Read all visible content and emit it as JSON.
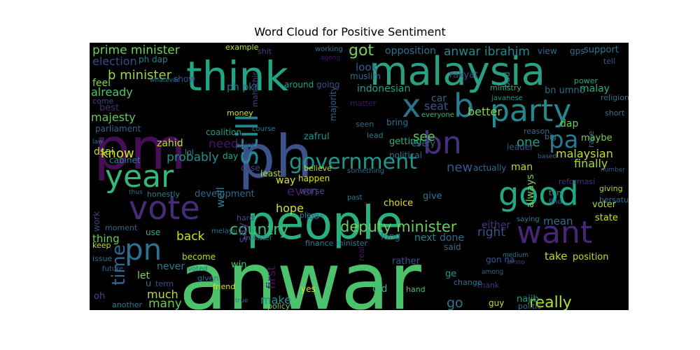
{
  "chart_data": {
    "type": "wordcloud",
    "title": "Word Cloud for Positive Sentiment",
    "background": "#000000",
    "colormap": "viridis",
    "words": [
      {
        "text": "anwar",
        "color": "#4cc26c"
      },
      {
        "text": "people",
        "color": "#2ab07f"
      },
      {
        "text": "pm",
        "color": "#440f54"
      },
      {
        "text": "ph",
        "color": "#3b528b"
      },
      {
        "text": "malaysia",
        "color": "#2a9f82"
      },
      {
        "text": "think",
        "color": "#21a685"
      },
      {
        "text": "party",
        "color": "#23898e"
      },
      {
        "text": "good",
        "color": "#22a884"
      },
      {
        "text": "year",
        "color": "#35b779"
      },
      {
        "text": "vote",
        "color": "#472c7a"
      },
      {
        "text": "want",
        "color": "#482576"
      },
      {
        "text": "bn",
        "color": "#46307e"
      },
      {
        "text": "pn",
        "color": "#2c718e"
      },
      {
        "text": "still",
        "color": "#25848e"
      },
      {
        "text": "x",
        "color": "#2c728e"
      },
      {
        "text": "b",
        "color": "#287c8e"
      },
      {
        "text": "government",
        "color": "#1f968b"
      },
      {
        "text": "pa",
        "color": "#2a788e"
      },
      {
        "text": "time",
        "color": "#31688e"
      },
      {
        "text": "really",
        "color": "#b5de2b"
      },
      {
        "text": "country",
        "color": "#3dbc74"
      },
      {
        "text": "deputy minister",
        "color": "#6ccd5a"
      },
      {
        "text": "got",
        "color": "#7ad151"
      },
      {
        "text": "anwar ibrahim",
        "color": "#24868e"
      },
      {
        "text": "prime minister",
        "color": "#6ece58"
      },
      {
        "text": "election",
        "color": "#3f4889"
      },
      {
        "text": "b minister",
        "color": "#9bd93c"
      },
      {
        "text": "know",
        "color": "#dde318"
      },
      {
        "text": "go",
        "color": "#2a788e"
      },
      {
        "text": "malaysian",
        "color": "#c0df25"
      },
      {
        "text": "finally",
        "color": "#a0da39"
      },
      {
        "text": "new",
        "color": "#3a548c"
      },
      {
        "text": "see",
        "color": "#5ec962"
      },
      {
        "text": "one",
        "color": "#1fa187"
      },
      {
        "text": "better",
        "color": "#7fd34e"
      },
      {
        "text": "probably",
        "color": "#20928c"
      },
      {
        "text": "need",
        "color": "#481668"
      },
      {
        "text": "majesty",
        "color": "#5ec962"
      },
      {
        "text": "already",
        "color": "#54c568"
      },
      {
        "text": "opposition",
        "color": "#2c728e"
      },
      {
        "text": "look",
        "color": "#355f8d"
      },
      {
        "text": "indonesian",
        "color": "#1f9e89"
      },
      {
        "text": "seat",
        "color": "#3b528b"
      },
      {
        "text": "even",
        "color": "#48186a"
      },
      {
        "text": "hope",
        "color": "#d8e219"
      },
      {
        "text": "say",
        "color": "#443a83"
      },
      {
        "text": "well",
        "color": "#26828e"
      },
      {
        "text": "back",
        "color": "#cde11d"
      },
      {
        "text": "many",
        "color": "#63cb5f"
      },
      {
        "text": "much",
        "color": "#b5de2b"
      },
      {
        "text": "make",
        "color": "#21918c"
      },
      {
        "text": "first",
        "color": "#471365"
      },
      {
        "text": "always",
        "color": "#7ad151"
      },
      {
        "text": "mean",
        "color": "#2d708e"
      },
      {
        "text": "right",
        "color": "#3b528b"
      },
      {
        "text": "work",
        "color": "#3f4788"
      },
      {
        "text": "thing",
        "color": "#6ccd5a"
      },
      {
        "text": "best",
        "color": "#472d7b"
      },
      {
        "text": "feel",
        "color": "#84d44b"
      },
      {
        "text": "dsai",
        "color": "#b2dd2d"
      },
      {
        "text": "zahid",
        "color": "#c2df23"
      },
      {
        "text": "ph pkr",
        "color": "#2c718e"
      },
      {
        "text": "malay",
        "color": "#29af7f"
      },
      {
        "text": "dap",
        "color": "#6ece58"
      },
      {
        "text": "bn umno",
        "color": "#2d708e"
      },
      {
        "text": "ph dap",
        "color": "#26828e"
      },
      {
        "text": "mahathir",
        "color": "#414487"
      },
      {
        "text": "majority",
        "color": "#33638d"
      },
      {
        "text": "car",
        "color": "#34618d"
      },
      {
        "text": "rakyat",
        "color": "#3e4c8a"
      },
      {
        "text": "take",
        "color": "#b8de29"
      },
      {
        "text": "position",
        "color": "#c0df25"
      },
      {
        "text": "next",
        "color": "#24878e"
      },
      {
        "text": "done",
        "color": "#2e6e8e"
      },
      {
        "text": "either",
        "color": "#46337f"
      },
      {
        "text": "let",
        "color": "#86d549"
      },
      {
        "text": "never",
        "color": "#287d8e"
      },
      {
        "text": "gon na",
        "color": "#39568c"
      },
      {
        "text": "najib",
        "color": "#1f9a8a"
      },
      {
        "text": "guy",
        "color": "#bddf26"
      },
      {
        "text": "state",
        "color": "#c8e020"
      },
      {
        "text": "voter",
        "color": "#a8db34"
      },
      {
        "text": "maybe",
        "color": "#7ad151"
      },
      {
        "text": "man",
        "color": "#b8de29"
      },
      {
        "text": "leader",
        "color": "#3b528b"
      },
      {
        "text": "actually",
        "color": "#2e6d8e"
      },
      {
        "text": "development",
        "color": "#31688e"
      },
      {
        "text": "way",
        "color": "#dde318"
      },
      {
        "text": "zafrul",
        "color": "#1f958b"
      },
      {
        "text": "getting",
        "color": "#2db27d"
      },
      {
        "text": "cabinet",
        "color": "#277f8e"
      },
      {
        "text": "honestly",
        "color": "#287c8e"
      },
      {
        "text": "become",
        "color": "#b5de2b"
      },
      {
        "text": "use",
        "color": "#29af7f"
      },
      {
        "text": "day",
        "color": "#21a685"
      },
      {
        "text": "point",
        "color": "#443983"
      },
      {
        "text": "lol",
        "color": "#277e8e"
      },
      {
        "text": "case",
        "color": "#3f4889"
      },
      {
        "text": "least",
        "color": "#b5de2b"
      },
      {
        "text": "believe",
        "color": "#b5de2b"
      },
      {
        "text": "choice",
        "color": "#e5e419"
      },
      {
        "text": "give",
        "color": "#2a788e"
      },
      {
        "text": "job",
        "color": "#3a548c"
      },
      {
        "text": "win",
        "color": "#4ac16d"
      },
      {
        "text": "long",
        "color": "#32648e"
      },
      {
        "text": "said",
        "color": "#2f6c8e"
      },
      {
        "text": "rather",
        "color": "#39568c"
      },
      {
        "text": "ge",
        "color": "#1f9e89"
      },
      {
        "text": "old",
        "color": "#35b779"
      },
      {
        "text": "hand",
        "color": "#48c16e"
      },
      {
        "text": "thank",
        "color": "#46307e"
      },
      {
        "text": "politic",
        "color": "#2c728e"
      },
      {
        "text": "policy",
        "color": "#6ccd5a"
      },
      {
        "text": "yes",
        "color": "#dde318"
      },
      {
        "text": "another",
        "color": "#287c8e"
      },
      {
        "text": "oh",
        "color": "#3e4a89"
      },
      {
        "text": "moment",
        "color": "#31688e"
      },
      {
        "text": "keep",
        "color": "#c2df23"
      },
      {
        "text": "issue",
        "color": "#2c718e"
      },
      {
        "text": "parliament",
        "color": "#33628d"
      },
      {
        "text": "come",
        "color": "#414487"
      },
      {
        "text": "example",
        "color": "#b5de2b"
      },
      {
        "text": "shit",
        "color": "#433e85"
      },
      {
        "text": "working",
        "color": "#2a788e"
      },
      {
        "text": "agong",
        "color": "#471365"
      },
      {
        "text": "muslim",
        "color": "#2d708e"
      },
      {
        "text": "around",
        "color": "#1f9e89"
      },
      {
        "text": "going",
        "color": "#3c4f8a"
      },
      {
        "text": "bad",
        "color": "#21918c"
      },
      {
        "text": "view",
        "color": "#31688e"
      },
      {
        "text": "gps",
        "color": "#2c718e"
      },
      {
        "text": "support",
        "color": "#2a788e"
      },
      {
        "text": "power",
        "color": "#21a685"
      },
      {
        "text": "tell",
        "color": "#3b528b"
      },
      {
        "text": "religion",
        "color": "#2d708e"
      },
      {
        "text": "short",
        "color": "#2c718e"
      },
      {
        "text": "ministry",
        "color": "#27ad81"
      },
      {
        "text": "javanese",
        "color": "#1f968b"
      },
      {
        "text": "reason",
        "color": "#31688e"
      },
      {
        "text": "big",
        "color": "#2c728e"
      },
      {
        "text": "bring",
        "color": "#2c718e"
      },
      {
        "text": "matter",
        "color": "#471365"
      },
      {
        "text": "seen",
        "color": "#31688e"
      },
      {
        "text": "lead",
        "color": "#287c8e"
      },
      {
        "text": "coalition",
        "color": "#1f9e89"
      },
      {
        "text": "money",
        "color": "#dde318"
      },
      {
        "text": "course",
        "color": "#2a788e"
      },
      {
        "text": "every",
        "color": "#2c718e"
      },
      {
        "text": "everyone",
        "color": "#35b779"
      },
      {
        "text": "worse",
        "color": "#3b528b"
      },
      {
        "text": "political",
        "color": "#2c728e"
      },
      {
        "text": "something",
        "color": "#31688e"
      },
      {
        "text": "happen",
        "color": "#dde318"
      },
      {
        "text": "please",
        "color": "#26828e"
      },
      {
        "text": "finance minister",
        "color": "#287d8e"
      },
      {
        "text": "minister",
        "color": "#2a788e"
      },
      {
        "text": "hard",
        "color": "#3e4c8a"
      },
      {
        "text": "melayu",
        "color": "#2c728e"
      },
      {
        "text": "tun",
        "color": "#21918c"
      },
      {
        "text": "find",
        "color": "#34618d"
      },
      {
        "text": "giving",
        "color": "#b5de2b"
      },
      {
        "text": "bersatu",
        "color": "#2c718e"
      },
      {
        "text": "number",
        "color": "#3b528b"
      },
      {
        "text": "reformasi",
        "color": "#472d7b"
      },
      {
        "text": "based",
        "color": "#31688e"
      },
      {
        "text": "race",
        "color": "#2d708e"
      },
      {
        "text": "saying",
        "color": "#287c8e"
      },
      {
        "text": "medium",
        "color": "#2c718e"
      },
      {
        "text": "umno",
        "color": "#443983"
      },
      {
        "text": "among",
        "color": "#31688e"
      },
      {
        "text": "change",
        "color": "#2c728e"
      },
      {
        "text": "real",
        "color": "#471365"
      },
      {
        "text": "term",
        "color": "#3b528b"
      },
      {
        "text": "friend",
        "color": "#dde318"
      },
      {
        "text": "true",
        "color": "#2c718e"
      },
      {
        "text": "given",
        "color": "#2d708e"
      },
      {
        "text": "voted",
        "color": "#2c728e"
      },
      {
        "text": "future",
        "color": "#31688e"
      },
      {
        "text": "u",
        "color": "#2d708e"
      },
      {
        "text": "law",
        "color": "#2c718e"
      },
      {
        "text": "thus",
        "color": "#31688e"
      },
      {
        "text": "show",
        "color": "#3b528b"
      },
      {
        "text": "whatever",
        "color": "#2c718e"
      },
      {
        "text": "past",
        "color": "#287c8e"
      }
    ]
  }
}
